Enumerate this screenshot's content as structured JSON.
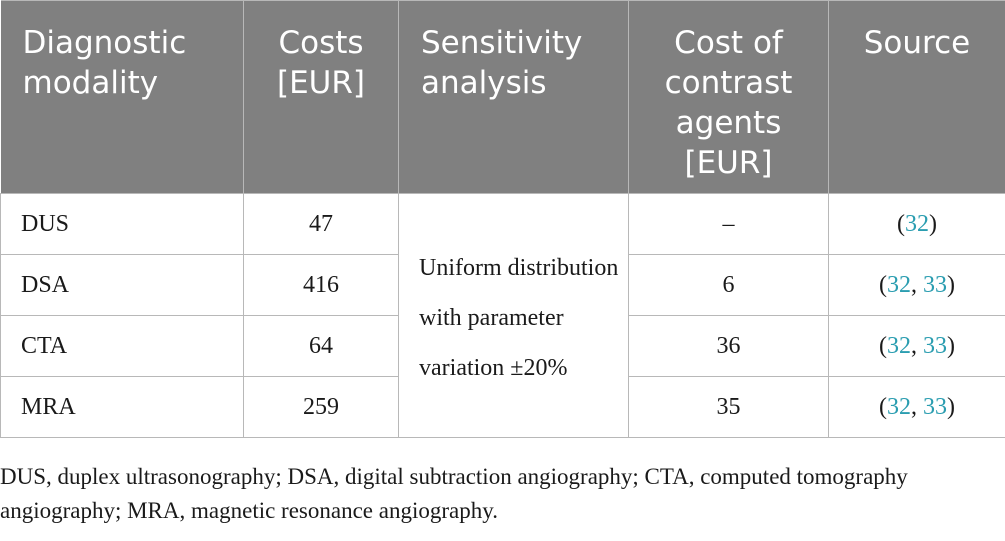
{
  "table": {
    "headers": [
      "Diagnostic modality",
      "Costs [EUR]",
      "Sensitivity analysis",
      "Cost of contrast agents [EUR]",
      "Source"
    ],
    "sensitivity_text": "Uniform distribution with parameter variation ±20%",
    "rows": [
      {
        "modality": "DUS",
        "cost": "47",
        "contrast_cost": "–",
        "source_open": "(",
        "source_refs": [
          "32"
        ],
        "source_close": ")"
      },
      {
        "modality": "DSA",
        "cost": "416",
        "contrast_cost": "6",
        "source_open": "(",
        "source_refs": [
          "32",
          "33"
        ],
        "source_close": ")"
      },
      {
        "modality": "CTA",
        "cost": "64",
        "contrast_cost": "36",
        "source_open": "(",
        "source_refs": [
          "32",
          "33"
        ],
        "source_close": ")"
      },
      {
        "modality": "MRA",
        "cost": "259",
        "contrast_cost": "35",
        "source_open": "(",
        "source_refs": [
          "32",
          "33"
        ],
        "source_close": ")"
      }
    ]
  },
  "caption": "DUS, duplex ultrasonography; DSA, digital subtraction angiography; CTA, computed tomography angiography; MRA, magnetic resonance angiography.",
  "colors": {
    "header_bg": "#808080",
    "header_text": "#ffffff",
    "border": "#b8b8b8",
    "reference_link": "#2a9db0"
  }
}
